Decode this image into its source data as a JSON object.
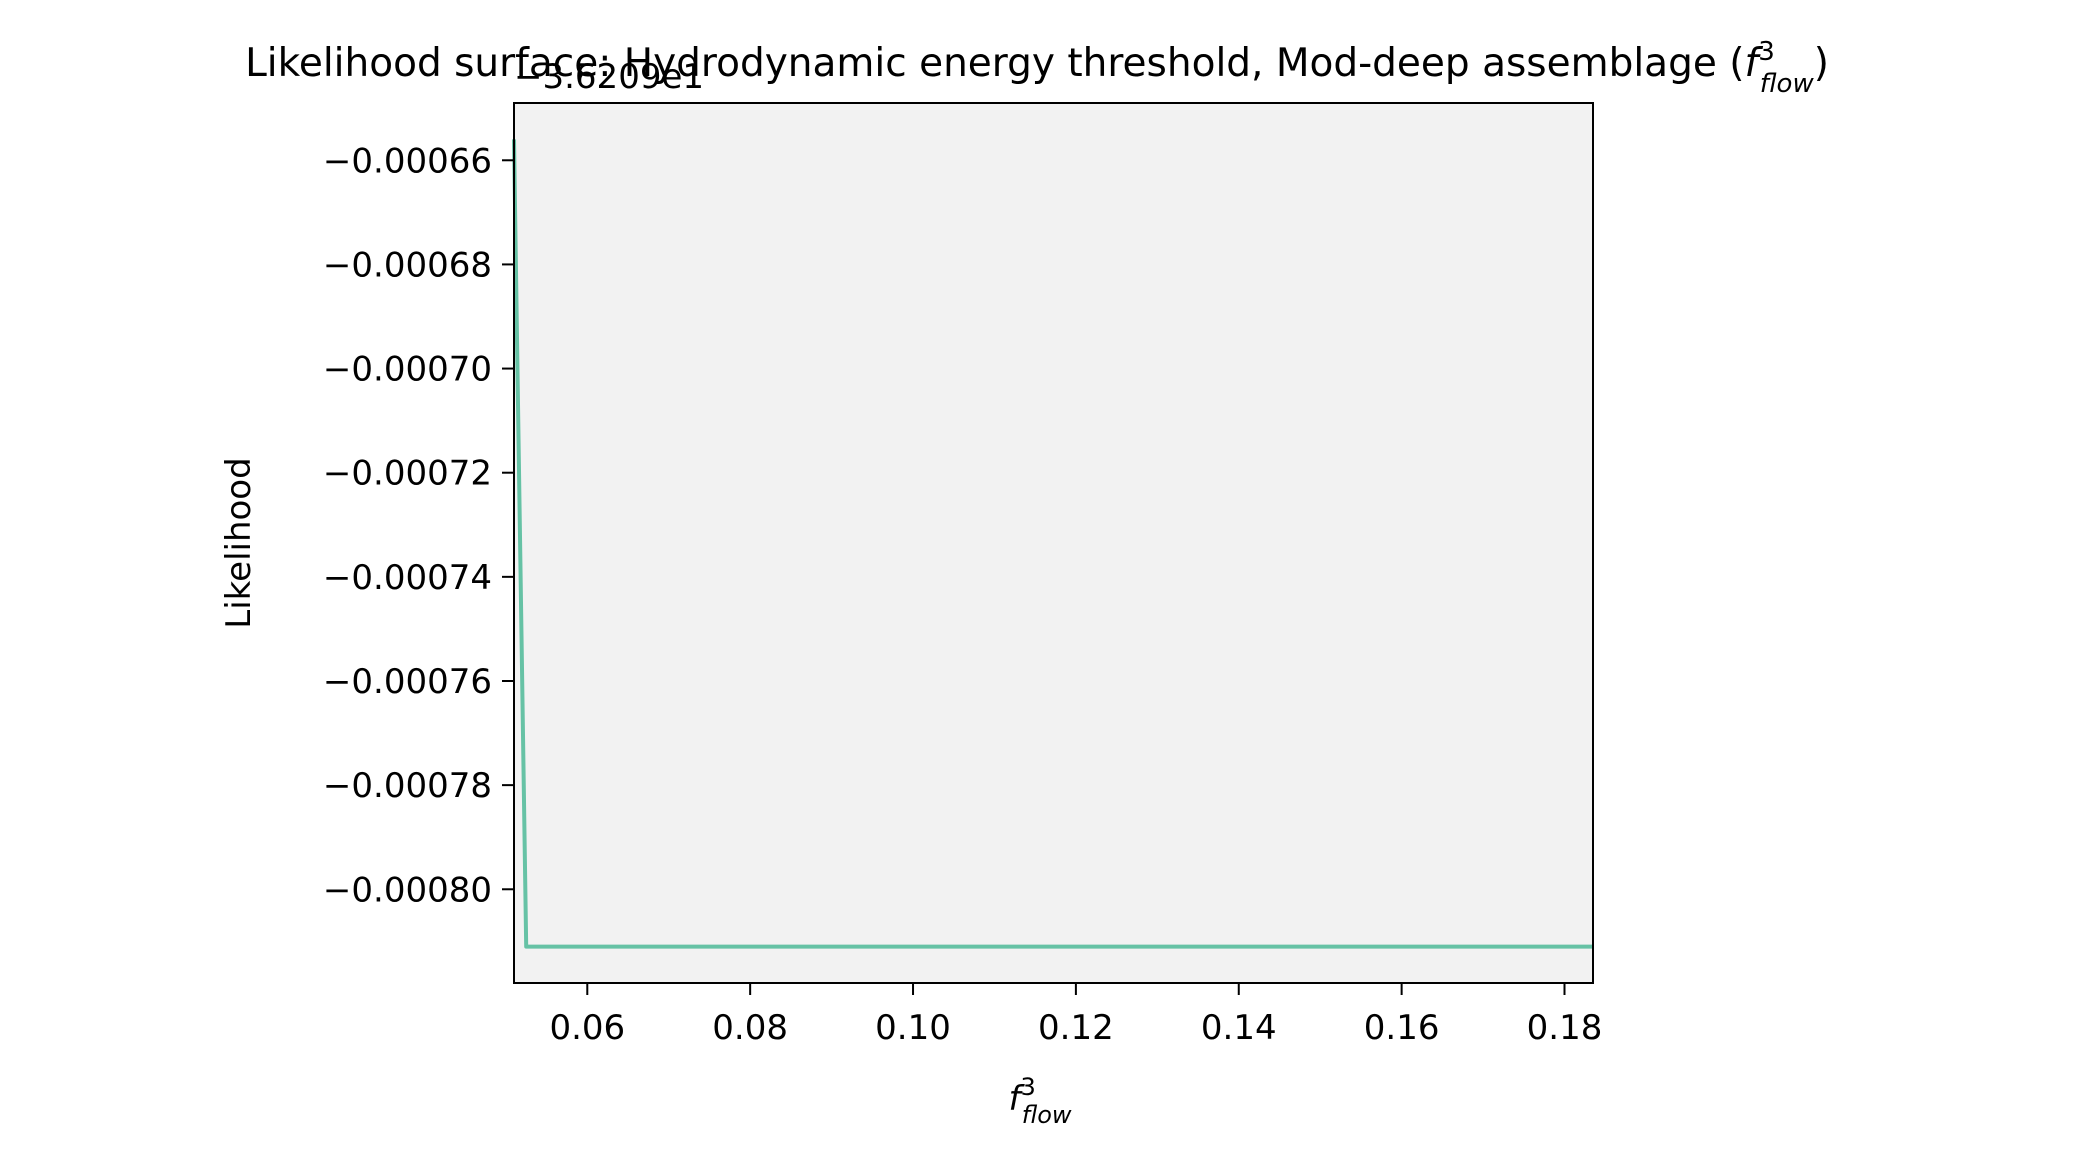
{
  "chart_data": {
    "type": "line",
    "title_main": "Likelihood surface: Hydrodynamic energy threshold, Mod-deep assemblage (",
    "title_symbol_base": "f",
    "title_symbol_sup": "3",
    "title_symbol_sub": "flow",
    "title_close": ")",
    "xlabel_base": "f",
    "xlabel_sup": "3",
    "xlabel_sub": "flow",
    "ylabel": "Likelihood",
    "y_offset_text": "−3.6209e1",
    "xlim": [
      0.051,
      0.1835
    ],
    "ylim": [
      -0.000818,
      -0.000649
    ],
    "x_ticks": [
      {
        "value": 0.06,
        "label": "0.06"
      },
      {
        "value": 0.08,
        "label": "0.08"
      },
      {
        "value": 0.1,
        "label": "0.10"
      },
      {
        "value": 0.12,
        "label": "0.12"
      },
      {
        "value": 0.14,
        "label": "0.14"
      },
      {
        "value": 0.16,
        "label": "0.16"
      },
      {
        "value": 0.18,
        "label": "0.18"
      }
    ],
    "y_ticks": [
      {
        "value": -0.00066,
        "label": "−0.00066"
      },
      {
        "value": -0.00068,
        "label": "−0.00068"
      },
      {
        "value": -0.0007,
        "label": "−0.00070"
      },
      {
        "value": -0.00072,
        "label": "−0.00072"
      },
      {
        "value": -0.00074,
        "label": "−0.00074"
      },
      {
        "value": -0.00076,
        "label": "−0.00076"
      },
      {
        "value": -0.00078,
        "label": "−0.00078"
      },
      {
        "value": -0.0008,
        "label": "−0.00080"
      }
    ],
    "series": [
      {
        "color": "#66c2a5",
        "x": [
          0.051,
          0.0525,
          0.055,
          0.06,
          0.08,
          0.1,
          0.12,
          0.14,
          0.16,
          0.18,
          0.1835
        ],
        "y": [
          -0.000656,
          -0.000811,
          -0.000811,
          -0.000811,
          -0.000811,
          -0.000811,
          -0.000811,
          -0.000811,
          -0.000811,
          -0.000811,
          -0.000811
        ]
      }
    ],
    "plot_background": "#f2f2f2",
    "grid": false,
    "legend": "none"
  }
}
